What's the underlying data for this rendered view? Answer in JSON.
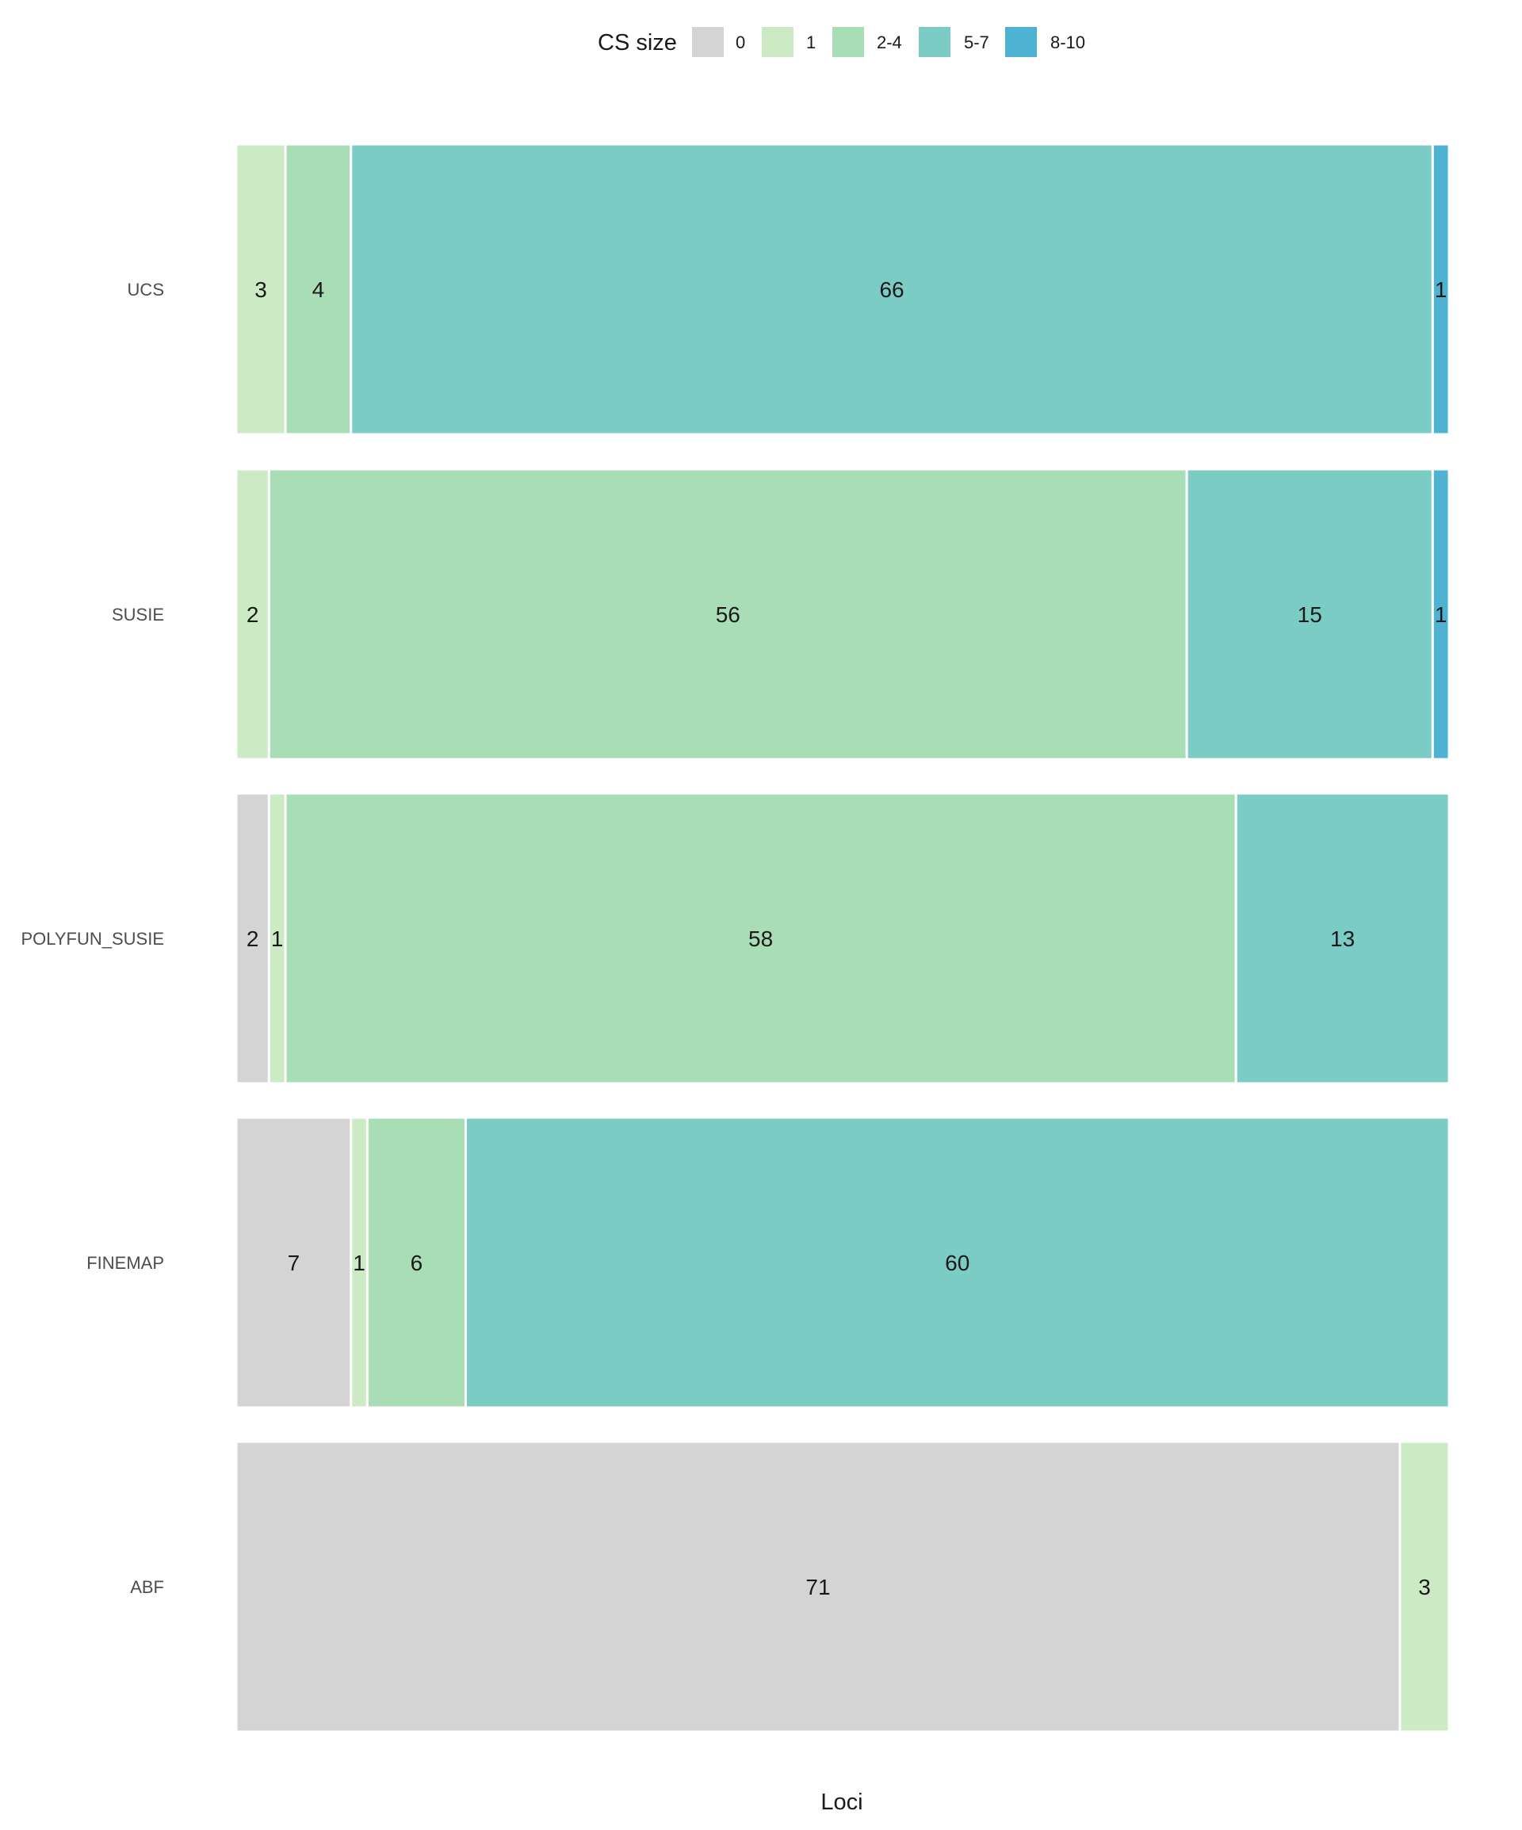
{
  "chart_data": {
    "type": "bar",
    "orientation": "horizontal-stacked",
    "xlabel": "Loci",
    "ylabel": "",
    "categories": [
      "UCS",
      "SUSIE",
      "POLYFUN_SUSIE",
      "FINEMAP",
      "ABF"
    ],
    "legend": {
      "title": "CS size",
      "placement": "top",
      "entries": [
        {
          "label": "0",
          "color": "#d4d4d4"
        },
        {
          "label": "1",
          "color": "#ccebc5"
        },
        {
          "label": "2-4",
          "color": "#a8ddb5"
        },
        {
          "label": "5-7",
          "color": "#7bccc4"
        },
        {
          "label": "8-10",
          "color": "#4eb3d3"
        }
      ]
    },
    "series": [
      {
        "name": "0",
        "values": [
          0,
          0,
          2,
          7,
          71
        ]
      },
      {
        "name": "1",
        "values": [
          3,
          2,
          1,
          1,
          3
        ]
      },
      {
        "name": "2-4",
        "values": [
          4,
          56,
          58,
          6,
          0
        ]
      },
      {
        "name": "5-7",
        "values": [
          66,
          15,
          13,
          60,
          0
        ]
      },
      {
        "name": "8-10",
        "values": [
          1,
          1,
          0,
          0,
          0
        ]
      }
    ],
    "xlim": [
      0,
      74
    ],
    "grid": false
  }
}
